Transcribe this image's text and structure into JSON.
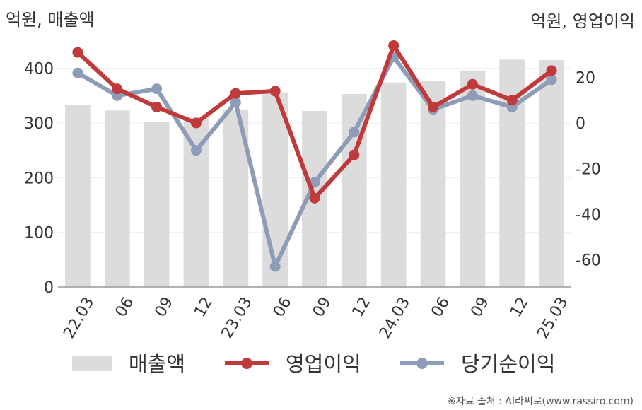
{
  "chart_data": {
    "type": "bar+line",
    "left_axis_label": "억원, 매출액",
    "right_axis_label": "억원, 영업이익",
    "left_ylim": [
      0,
      450
    ],
    "left_ticks": [
      0,
      100,
      200,
      300,
      400
    ],
    "right_ylim": [
      -72,
      36
    ],
    "right_ticks": [
      -60,
      -40,
      -20,
      0,
      20
    ],
    "categories": [
      "22.03",
      "06",
      "09",
      "12",
      "23.03",
      "06",
      "09",
      "12",
      "24.03",
      "06",
      "09",
      "12",
      "25.03"
    ],
    "series": [
      {
        "name": "매출액",
        "kind": "bar",
        "axis": "left",
        "color": "#dcdcdc",
        "values": [
          333,
          323,
          302,
          310,
          325,
          356,
          322,
          353,
          374,
          377,
          396,
          416,
          415
        ]
      },
      {
        "name": "영업이익",
        "kind": "line",
        "axis": "right",
        "color": "#c0393b",
        "values": [
          31,
          15,
          7,
          0,
          13,
          14,
          -33,
          -14,
          34,
          7,
          17,
          10,
          23
        ]
      },
      {
        "name": "당기순이익",
        "kind": "line",
        "axis": "right",
        "color": "#8e9cb8",
        "values": [
          22,
          12,
          15,
          -12,
          9,
          -63,
          -26,
          -4,
          29,
          6,
          12,
          7,
          19
        ]
      }
    ],
    "legend_position": "bottom",
    "grid": true
  },
  "footer": {
    "source": "※자료 출처 : AI라씨로(www.rassiro.com)"
  }
}
